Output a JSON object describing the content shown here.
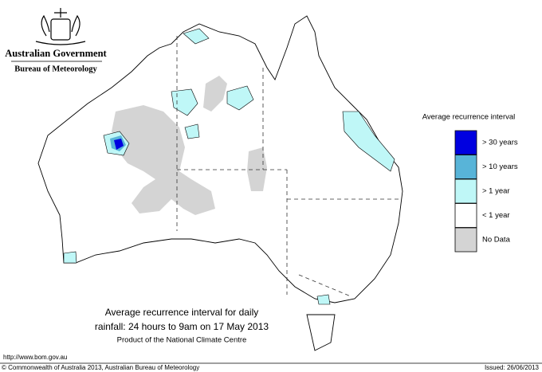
{
  "header": {
    "title": "Australian Government",
    "subtitle": "Bureau of Meteorology"
  },
  "legend": {
    "title": "Average recurrence interval",
    "items": [
      {
        "label": "> 30 years",
        "color": "#0000e0"
      },
      {
        "label": "> 10 years",
        "color": "#58b4d8"
      },
      {
        "label": "> 1 year",
        "color": "#bff7f7"
      },
      {
        "label": "< 1 year",
        "color": "#ffffff"
      },
      {
        "label": "No Data",
        "color": "#d4d4d4"
      }
    ]
  },
  "caption": {
    "lines": [
      "Average recurrence interval for daily",
      "rainfall: 24 hours to 9am on 17 May 2013"
    ],
    "product": "Product of the National Climate Centre"
  },
  "footer": {
    "url": "http://www.bom.gov.au",
    "copyright": "© Commonwealth of Australia 2013, Australian Bureau of Meteorology",
    "issued": "Issued: 26/06/2013"
  }
}
